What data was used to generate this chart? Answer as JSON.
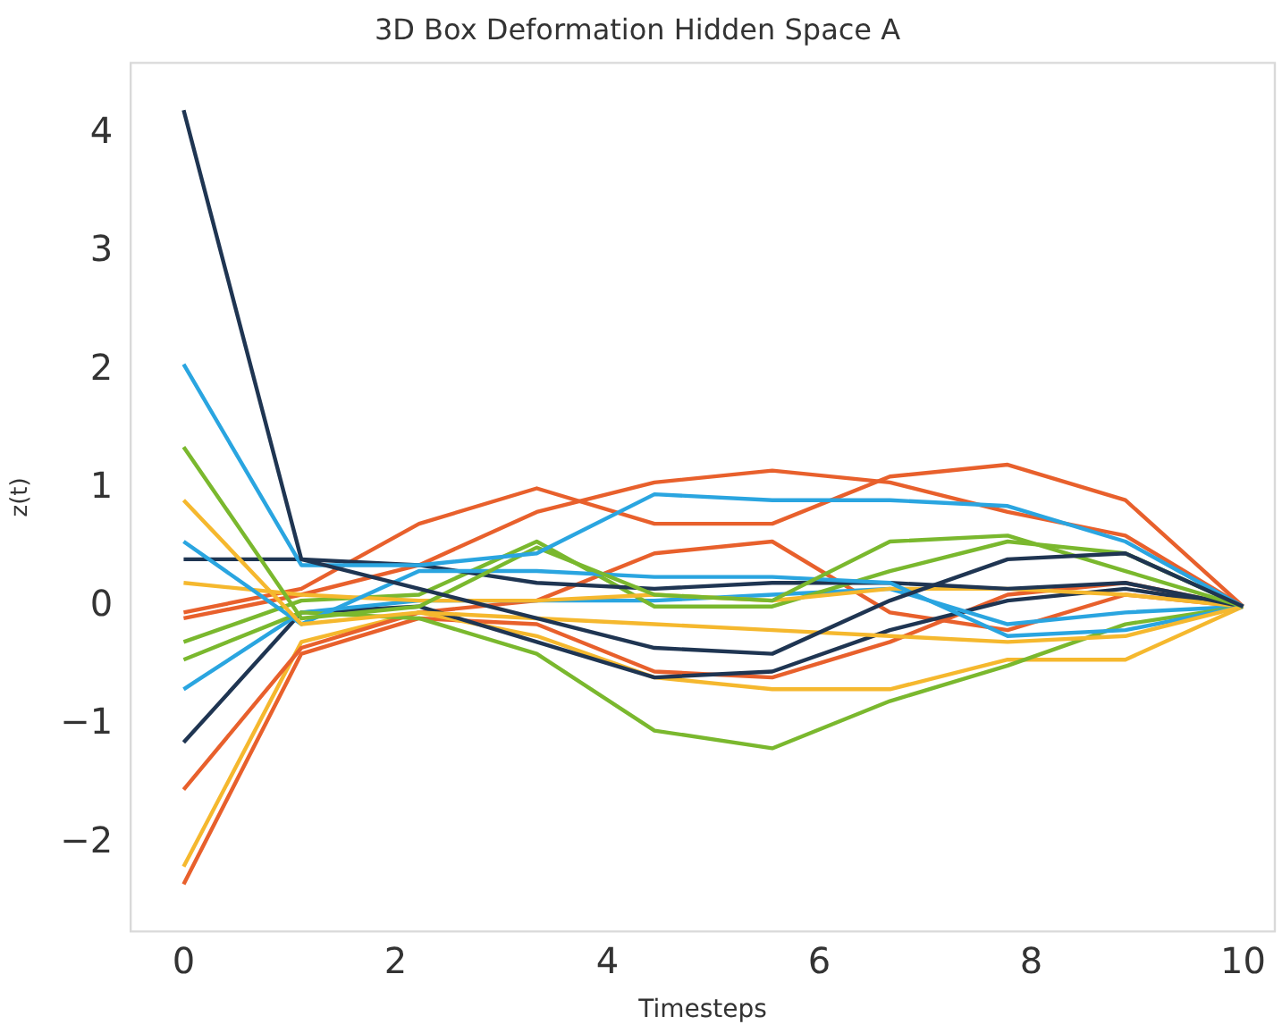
{
  "chart_data": {
    "type": "line",
    "title": "3D Box Deformation Hidden Space A",
    "xlabel": "Timesteps",
    "ylabel": "z(t)",
    "x": [
      0,
      1.111,
      2.222,
      3.333,
      4.444,
      5.556,
      6.667,
      7.778,
      8.889,
      10
    ],
    "xlim": [
      -0.5,
      10.3
    ],
    "ylim": [
      -2.75,
      4.6
    ],
    "xticks": [
      0,
      2,
      4,
      6,
      8,
      10
    ],
    "yticks": [
      -2,
      -1,
      0,
      1,
      2,
      3,
      4
    ],
    "grid": false,
    "legend": false,
    "marker": "none",
    "line_style": "solid",
    "series": [
      {
        "color": "#1f3552",
        "values": [
          4.2,
          0.4,
          0.15,
          -0.1,
          -0.35,
          -0.4,
          0.05,
          0.4,
          0.45,
          0
        ]
      },
      {
        "color": "#2aa5e0",
        "values": [
          2.05,
          0.35,
          0.35,
          0.45,
          0.95,
          0.9,
          0.9,
          0.85,
          0.55,
          0
        ]
      },
      {
        "color": "#7ab82e",
        "values": [
          1.35,
          -0.1,
          0,
          0.5,
          0.1,
          0.05,
          0.55,
          0.6,
          0.3,
          0
        ]
      },
      {
        "color": "#f5b82e",
        "values": [
          0.9,
          -0.15,
          -0.05,
          -0.1,
          -0.15,
          -0.2,
          -0.25,
          -0.3,
          -0.25,
          0
        ]
      },
      {
        "color": "#2aa5e0",
        "values": [
          0.55,
          -0.15,
          0.3,
          0.3,
          0.25,
          0.25,
          0.2,
          -0.25,
          -0.2,
          0
        ]
      },
      {
        "color": "#1f3552",
        "values": [
          0.4,
          0.4,
          0.35,
          0.2,
          0.15,
          0.2,
          0.2,
          0.15,
          0.2,
          0
        ]
      },
      {
        "color": "#f5b82e",
        "values": [
          0.2,
          0.1,
          0.05,
          0.05,
          0.1,
          0.05,
          0.15,
          0.15,
          0.1,
          0
        ]
      },
      {
        "color": "#e8602c",
        "values": [
          -0.05,
          0.15,
          0.7,
          1.0,
          0.7,
          0.7,
          1.1,
          1.2,
          0.9,
          0
        ]
      },
      {
        "color": "#e8602c",
        "values": [
          -0.1,
          0.1,
          0.35,
          0.8,
          1.05,
          1.15,
          1.05,
          0.8,
          0.6,
          0
        ]
      },
      {
        "color": "#7ab82e",
        "values": [
          -0.3,
          0.05,
          0.1,
          0.55,
          0.0,
          0.0,
          0.3,
          0.55,
          0.45,
          0
        ]
      },
      {
        "color": "#7ab82e",
        "values": [
          -0.45,
          -0.05,
          -0.1,
          -0.4,
          -1.05,
          -1.2,
          -0.8,
          -0.5,
          -0.15,
          0
        ]
      },
      {
        "color": "#2aa5e0",
        "values": [
          -0.7,
          -0.05,
          0.05,
          0.05,
          0.05,
          0.1,
          0.15,
          -0.15,
          -0.05,
          0
        ]
      },
      {
        "color": "#1f3552",
        "values": [
          -1.15,
          -0.05,
          0.0,
          -0.3,
          -0.6,
          -0.55,
          -0.2,
          0.05,
          0.15,
          0
        ]
      },
      {
        "color": "#e8602c",
        "values": [
          -1.55,
          -0.35,
          -0.05,
          0.05,
          0.45,
          0.55,
          -0.05,
          -0.2,
          0.1,
          0
        ]
      },
      {
        "color": "#f5b82e",
        "values": [
          -2.2,
          -0.3,
          -0.05,
          -0.25,
          -0.6,
          -0.7,
          -0.7,
          -0.45,
          -0.45,
          0
        ]
      },
      {
        "color": "#e8602c",
        "values": [
          -2.35,
          -0.4,
          -0.1,
          -0.15,
          -0.55,
          -0.6,
          -0.3,
          0.1,
          0.2,
          0
        ]
      }
    ]
  }
}
